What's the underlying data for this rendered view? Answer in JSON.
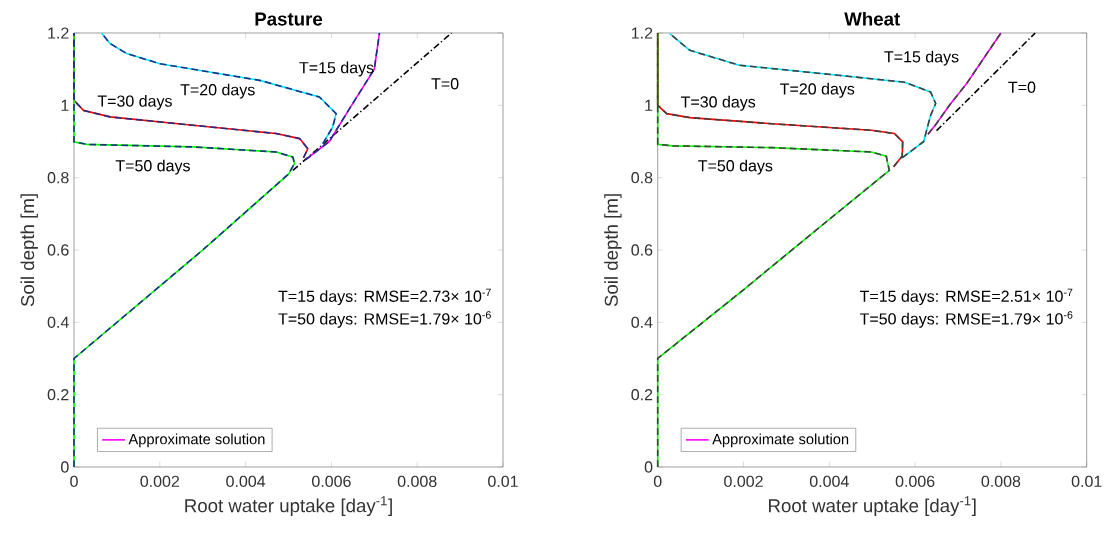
{
  "chart_data": [
    {
      "type": "line",
      "title": "Pasture",
      "xlabel": "Root water uptake [day$^{-1}$]",
      "ylabel": "Soil depth [m]",
      "xlim": [
        0,
        0.01
      ],
      "ylim": [
        0,
        1.2
      ],
      "xticks": [
        0,
        0.002,
        0.004,
        0.006,
        0.008,
        0.01
      ],
      "yticks": [
        0,
        0.2,
        0.4,
        0.6,
        0.8,
        1,
        1.2
      ],
      "legend": "bottom left",
      "series": [
        {
          "color": "#000000",
          "line_style": "dashdot",
          "x": [
            0.0051,
            0.0088
          ],
          "values": [
            0.82,
            1.2
          ]
        },
        {
          "name": "Approximate solution",
          "color": "#ff00ff",
          "line_style": "solid",
          "x": [
            0.0054,
            0.00595,
            0.00647,
            0.007,
            0.00712
          ],
          "values": [
            0.85,
            0.9,
            1.0,
            1.1,
            1.2
          ]
        },
        {
          "color": "#00e5ff",
          "line_style": "solid",
          "x": [
            0.0058,
            0.00603,
            0.00611,
            0.00572,
            0.00433,
            0.002,
            0.00123,
            0.00084,
            0.00064
          ],
          "values": [
            0.894,
            0.94,
            0.977,
            1.023,
            1.069,
            1.115,
            1.143,
            1.171,
            1.2
          ]
        },
        {
          "color": "#ff0000",
          "line_style": "solid",
          "x": [
            0.00535,
            0.00545,
            0.00526,
            0.00471,
            0.00277,
            0.00084,
            0.00022,
            0,
            0
          ],
          "values": [
            0.855,
            0.88,
            0.908,
            0.922,
            0.945,
            0.968,
            0.986,
            1.014,
            1.2
          ]
        },
        {
          "color": "#00ff00",
          "line_style": "solid",
          "x": [
            0,
            0,
            0.001,
            0.003,
            0.005,
            0.00514,
            0.0051,
            0.00471,
            0.00277,
            0.0003,
            0,
            0
          ],
          "values": [
            0,
            0.3,
            0.4,
            0.6,
            0.81,
            0.839,
            0.857,
            0.871,
            0.885,
            0.892,
            0.899,
            1.2
          ]
        },
        {
          "color": "#1c2f84",
          "line_style": "dashed",
          "x": [
            0.0054,
            0.00595,
            0.00647,
            0.007,
            0.00712
          ],
          "values": [
            0.85,
            0.9,
            1.0,
            1.1,
            1.2
          ]
        },
        {
          "color": "#1c2f84",
          "line_style": "dashed",
          "x": [
            0.0058,
            0.00603,
            0.00611,
            0.00572,
            0.00433,
            0.002,
            0.00123,
            0.00084,
            0.00064
          ],
          "values": [
            0.894,
            0.94,
            0.977,
            1.023,
            1.069,
            1.115,
            1.143,
            1.171,
            1.2
          ]
        },
        {
          "color": "#1c2f84",
          "line_style": "dashed",
          "x": [
            0.00535,
            0.00545,
            0.00526,
            0.00471,
            0.00277,
            0.00084,
            0.00022,
            0,
            0
          ],
          "values": [
            0.855,
            0.88,
            0.908,
            0.922,
            0.945,
            0.968,
            0.986,
            1.014,
            1.2
          ]
        },
        {
          "color": "#1c2f84",
          "line_style": "dashed",
          "x": [
            0,
            0,
            0.001,
            0.003,
            0.005,
            0.00514,
            0.0051,
            0.00471,
            0.00277,
            0.0003,
            0,
            0
          ],
          "values": [
            0,
            0.3,
            0.4,
            0.6,
            0.81,
            0.839,
            0.857,
            0.871,
            0.885,
            0.892,
            0.899,
            1.2
          ]
        }
      ],
      "annotations": [
        "T=15 days",
        "T=20 days",
        "T=30 days",
        "T=50 days",
        "T=0",
        "T=15 days: RMSE=2.73× 10$^{-7}$",
        "T=50 days: RMSE=1.79× 10$^{-6}$"
      ]
    },
    {
      "type": "line",
      "title": "Wheat",
      "xlabel": "Root water uptake [day$^{-1}$]",
      "ylabel": "Soil depth [m]",
      "xlim": [
        0,
        0.01
      ],
      "ylim": [
        0,
        1.2
      ],
      "xticks": [
        0,
        0.002,
        0.004,
        0.006,
        0.008,
        0.01
      ],
      "yticks": [
        0,
        0.2,
        0.4,
        0.6,
        0.8,
        1,
        1.2
      ],
      "legend": "bottom left",
      "series": [
        {
          "color": "#000000",
          "line_style": "dashdot",
          "x": [
            0.0065,
            0.0088
          ],
          "values": [
            0.93,
            1.2
          ]
        },
        {
          "name": "Approximate solution",
          "color": "#ff00ff",
          "line_style": "solid",
          "x": [
            0.0063,
            0.0065,
            0.0068,
            0.0072,
            0.0076,
            0.008
          ],
          "values": [
            0.92,
            0.95,
            1.0,
            1.06,
            1.13,
            1.2
          ]
        },
        {
          "color": "#00e5ff",
          "line_style": "solid",
          "x": [
            0.0057,
            0.0062,
            0.00636,
            0.00648,
            0.00636,
            0.00575,
            0.00421,
            0.0019,
            0.00075,
            0.00028
          ],
          "values": [
            0.855,
            0.9,
            0.972,
            1.005,
            1.037,
            1.064,
            1.083,
            1.111,
            1.152,
            1.198
          ]
        },
        {
          "color": "#ff0000",
          "line_style": "solid",
          "x": [
            0.0055,
            0.0057,
            0.00571,
            0.00552,
            0.00498,
            0.00267,
            0.00075,
            0.00021,
            0,
            0
          ],
          "values": [
            0.83,
            0.86,
            0.899,
            0.922,
            0.931,
            0.949,
            0.966,
            0.977,
            1.0,
            1.2
          ]
        },
        {
          "color": "#00ff00",
          "line_style": "solid",
          "x": [
            0,
            0,
            0.002,
            0.004,
            0.0054,
            0.00535,
            0.00533,
            0.00498,
            0.00267,
            0.00035,
            0,
            0
          ],
          "values": [
            0,
            0.3,
            0.49,
            0.685,
            0.82,
            0.845,
            0.859,
            0.871,
            0.883,
            0.888,
            0.892,
            1.2
          ]
        },
        {
          "color": "#404040",
          "line_style": "dashed",
          "x": [
            0.0063,
            0.0065,
            0.0068,
            0.0072,
            0.0076,
            0.008
          ],
          "values": [
            0.92,
            0.95,
            1.0,
            1.06,
            1.13,
            1.2
          ]
        },
        {
          "color": "#404040",
          "line_style": "dashed",
          "x": [
            0.0057,
            0.0062,
            0.00636,
            0.00648,
            0.00636,
            0.00575,
            0.00421,
            0.0019,
            0.00075,
            0.00028
          ],
          "values": [
            0.855,
            0.9,
            0.972,
            1.005,
            1.037,
            1.064,
            1.083,
            1.111,
            1.152,
            1.198
          ]
        },
        {
          "color": "#404040",
          "line_style": "dashed",
          "x": [
            0.0055,
            0.0057,
            0.00571,
            0.00552,
            0.00498,
            0.00267,
            0.00075,
            0.00021,
            0,
            0
          ],
          "values": [
            0.83,
            0.86,
            0.899,
            0.922,
            0.931,
            0.949,
            0.966,
            0.977,
            1.0,
            1.2
          ]
        },
        {
          "color": "#404040",
          "line_style": "dashed",
          "x": [
            0,
            0,
            0.002,
            0.004,
            0.0054,
            0.00535,
            0.00533,
            0.00498,
            0.00267,
            0.00035,
            0,
            0
          ],
          "values": [
            0,
            0.3,
            0.49,
            0.685,
            0.82,
            0.845,
            0.859,
            0.871,
            0.883,
            0.888,
            0.892,
            1.2
          ]
        }
      ],
      "annotations": [
        "T=15 days",
        "T=20 days",
        "T=30 days",
        "T=50 days",
        "T=0",
        "T=15 days: RMSE=2.51× 10$^{-7}$",
        "T=50 days: RMSE=1.79× 10$^{-6}$"
      ]
    }
  ]
}
